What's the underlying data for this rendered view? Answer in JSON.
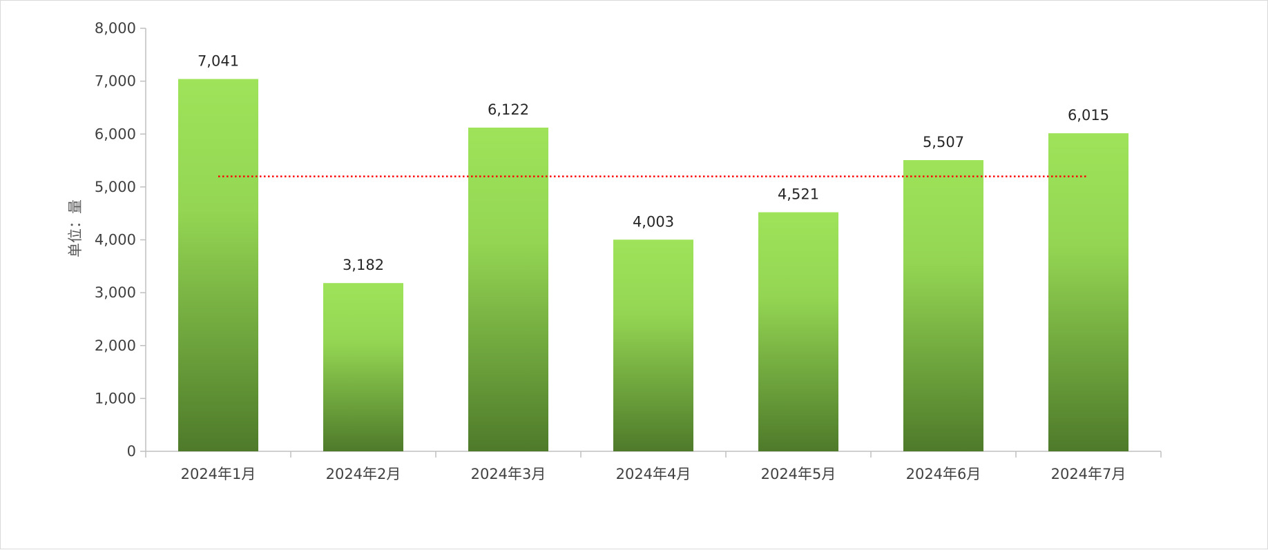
{
  "chart_data": {
    "type": "bar",
    "categories": [
      "2024年1月",
      "2024年2月",
      "2024年3月",
      "2024年4月",
      "2024年5月",
      "2024年6月",
      "2024年7月"
    ],
    "values": [
      7041,
      3182,
      6122,
      4003,
      4521,
      5507,
      6015
    ],
    "data_labels": [
      "7,041",
      "3,182",
      "6,122",
      "4,003",
      "4,521",
      "5,507",
      "6,015"
    ],
    "ylabel": "单位：量",
    "ylim": [
      0,
      8000
    ],
    "yticks": [
      0,
      1000,
      2000,
      3000,
      4000,
      5000,
      6000,
      7000,
      8000
    ],
    "ytick_labels": [
      "0",
      "1,000",
      "2,000",
      "3,000",
      "4,000",
      "5,000",
      "6,000",
      "7,000",
      "8,000"
    ],
    "average_line": {
      "value": 5199,
      "style": "dotted",
      "color": "#ff0000"
    },
    "grid": false,
    "legend": "none",
    "colors": {
      "bar_top": "#9ee35a",
      "bar_bottom": "#4e7a2a",
      "axis": "#bfbfbf"
    }
  }
}
